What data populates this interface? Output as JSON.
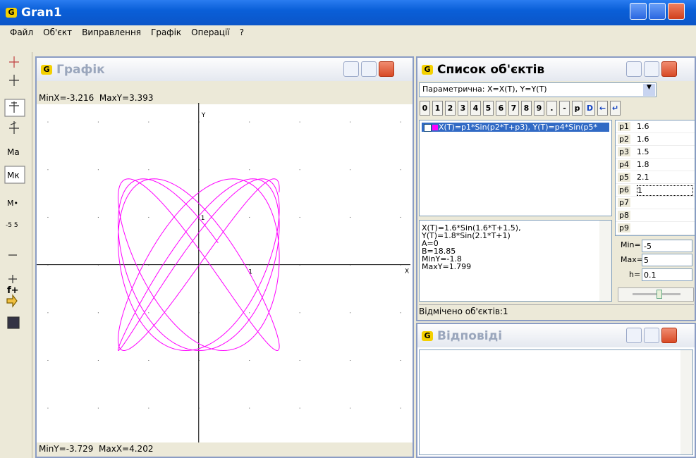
{
  "app": {
    "title": "Gran1",
    "menu": [
      "Файл",
      "Об'єкт",
      "Виправлення",
      "Графік",
      "Операції",
      "?"
    ]
  },
  "toolbar": [
    "Ма",
    "Мк",
    "f+"
  ],
  "graph": {
    "title": "Графік",
    "min_x_label": "MinX=",
    "min_x": -3.216,
    "max_y_label": "MaxY=",
    "max_y": 3.393,
    "min_y_label": "MinY=",
    "min_y": -3.729,
    "max_x_label": "MaxX=",
    "max_x": 4.202,
    "x_axis": "X",
    "y_axis": "Y",
    "tick": 1
  },
  "objects": {
    "title": "Список об'єктів",
    "type_select": "Параметрична: X=X(T), Y=Y(T)",
    "buttons": [
      "0",
      "1",
      "2",
      "3",
      "4",
      "5",
      "6",
      "7",
      "8",
      "9",
      ".",
      "-",
      "p",
      "D",
      "←",
      "↵"
    ],
    "items": [
      "X(T)=p1*Sin(p2*T+p3), Y(T)=p4*Sin(p5*"
    ],
    "params": [
      {
        "name": "p1",
        "value": 1.6
      },
      {
        "name": "p2",
        "value": 1.6
      },
      {
        "name": "p3",
        "value": 1.5
      },
      {
        "name": "p4",
        "value": 1.8
      },
      {
        "name": "p5",
        "value": 2.1
      },
      {
        "name": "p6",
        "value": 1
      },
      {
        "name": "p7",
        "value": null
      },
      {
        "name": "p8",
        "value": null
      },
      {
        "name": "p9",
        "value": null
      }
    ],
    "info": {
      "formulas": [
        "X(T)=1.6*Sin(1.6*T+1.5),",
        "Y(T)=1.8*Sin(2.1*T+1)"
      ],
      "stats": [
        {
          "key": "A=",
          "value": 0
        },
        {
          "key": "B=",
          "value": 18.85
        },
        {
          "key": "MinY=",
          "value": -1.8
        },
        {
          "key": "MaxY=",
          "value": 1.799
        }
      ]
    },
    "range": {
      "min_label": "Min=",
      "min": -5,
      "max_label": "Max=",
      "max": 5,
      "h_label": "h=",
      "h": 0.1
    },
    "status": "Відмічено об'єктів:1"
  },
  "answers": {
    "title": "Відповіді"
  }
}
